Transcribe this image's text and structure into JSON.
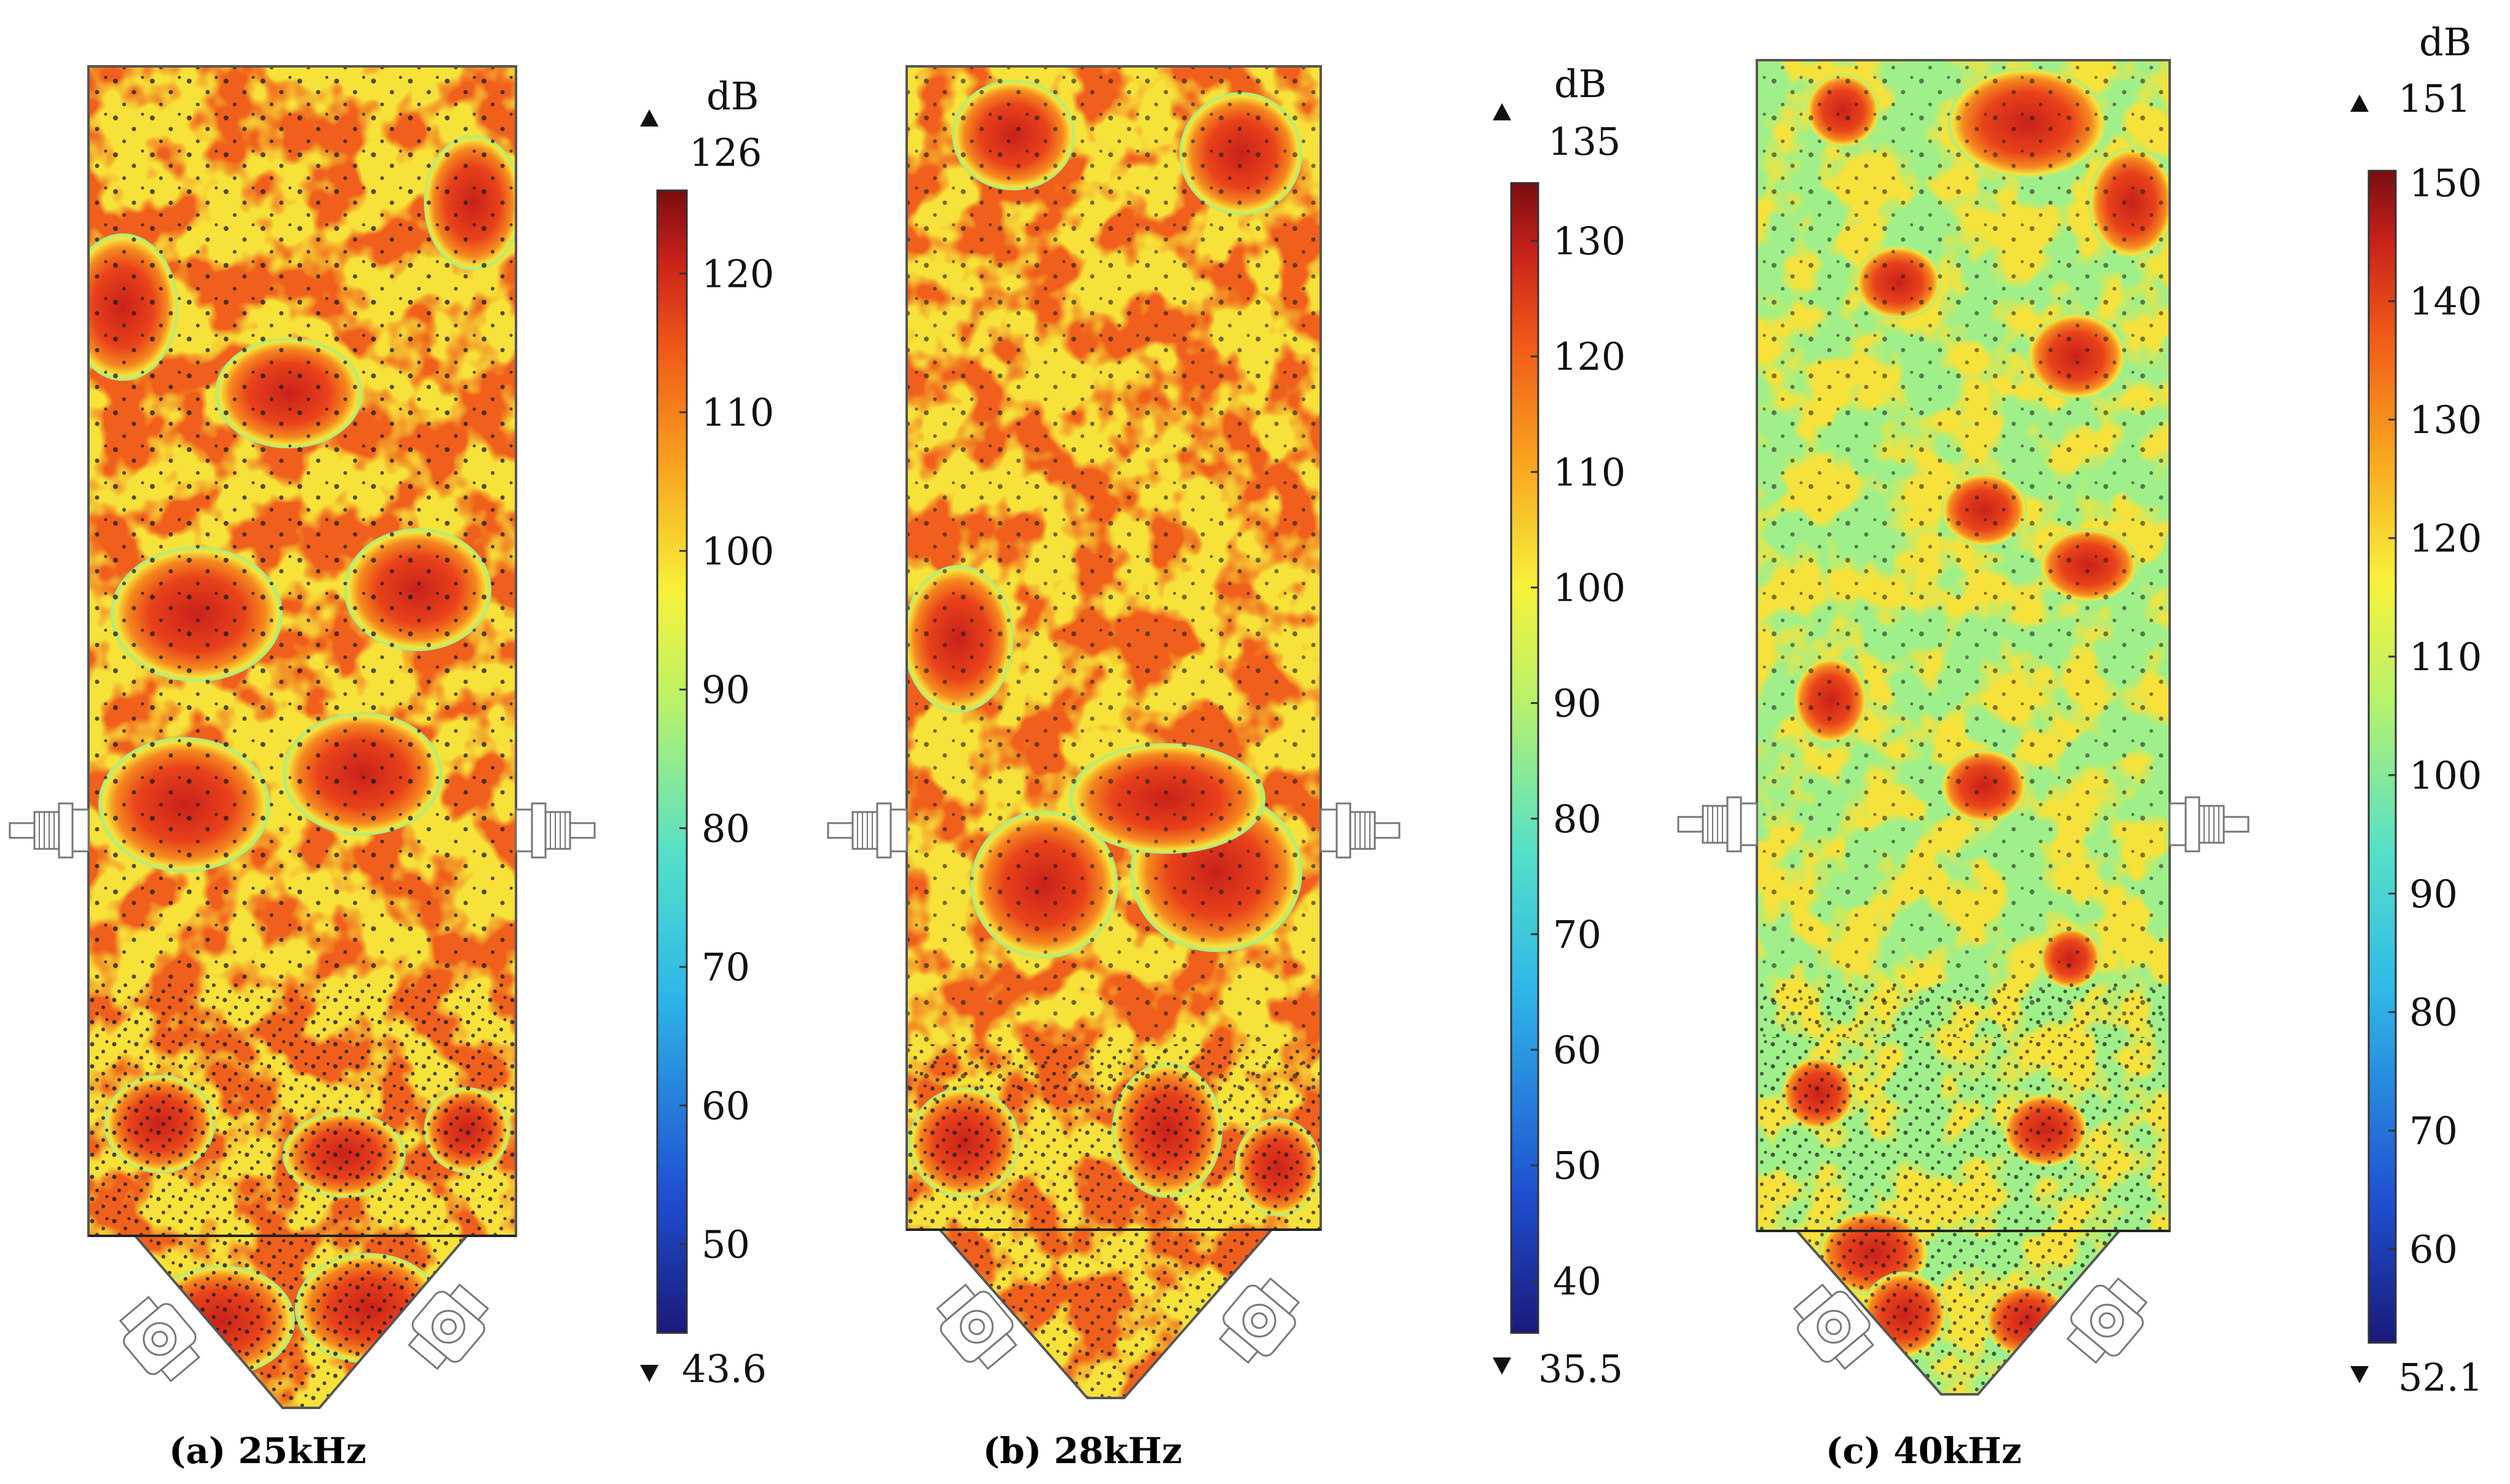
{
  "figure": {
    "panels": [
      {
        "caption": "(a) 25kHz",
        "colorbar": {
          "unit": "dB",
          "max": "126",
          "min": "43.6",
          "range": [
            43.6,
            126
          ],
          "ticks": [
            50,
            60,
            70,
            80,
            90,
            100,
            110,
            120
          ],
          "tick_labels": [
            "50",
            "60",
            "70",
            "80",
            "90",
            "100",
            "110",
            "120"
          ]
        }
      },
      {
        "caption": "(b) 28kHz",
        "colorbar": {
          "unit": "dB",
          "max": "135",
          "min": "35.5",
          "range": [
            35.5,
            135
          ],
          "ticks": [
            40,
            50,
            60,
            70,
            80,
            90,
            100,
            110,
            120,
            130
          ],
          "tick_labels": [
            "40",
            "50",
            "60",
            "70",
            "80",
            "90",
            "100",
            "110",
            "120",
            "130"
          ]
        }
      },
      {
        "caption": "(c) 40kHz",
        "colorbar": {
          "unit": "dB",
          "max": "151",
          "min": "52.1",
          "range": [
            52.1,
            151
          ],
          "ticks": [
            60,
            70,
            80,
            90,
            100,
            110,
            120,
            130,
            140,
            150
          ],
          "tick_labels": [
            "60",
            "70",
            "80",
            "90",
            "100",
            "110",
            "120",
            "130",
            "140",
            "150"
          ]
        }
      }
    ],
    "colormap": [
      "#1a1a7a",
      "#1f4fd1",
      "#2fb8e8",
      "#55e0c8",
      "#b8f26a",
      "#f7f23a",
      "#f9a21e",
      "#f05a18",
      "#c8211a",
      "#7a0d10"
    ]
  }
}
